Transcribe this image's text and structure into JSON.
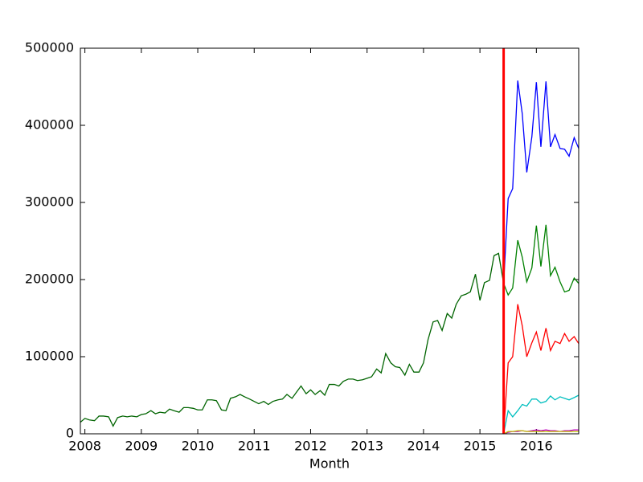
{
  "chart_data": {
    "type": "line",
    "xlabel": "Month",
    "x": [
      2007.92,
      2008.0,
      2008.08,
      2008.17,
      2008.25,
      2008.33,
      2008.42,
      2008.5,
      2008.58,
      2008.67,
      2008.75,
      2008.83,
      2008.92,
      2009.0,
      2009.08,
      2009.17,
      2009.25,
      2009.33,
      2009.42,
      2009.5,
      2009.58,
      2009.67,
      2009.75,
      2009.83,
      2009.92,
      2010.0,
      2010.08,
      2010.17,
      2010.25,
      2010.33,
      2010.42,
      2010.5,
      2010.58,
      2010.67,
      2010.75,
      2010.83,
      2010.92,
      2011.0,
      2011.08,
      2011.17,
      2011.25,
      2011.33,
      2011.42,
      2011.5,
      2011.58,
      2011.67,
      2011.75,
      2011.83,
      2011.92,
      2012.0,
      2012.08,
      2012.17,
      2012.25,
      2012.33,
      2012.42,
      2012.5,
      2012.58,
      2012.67,
      2012.75,
      2012.83,
      2012.92,
      2013.0,
      2013.08,
      2013.17,
      2013.25,
      2013.33,
      2013.42,
      2013.5,
      2013.58,
      2013.67,
      2013.75,
      2013.83,
      2013.92,
      2014.0,
      2014.08,
      2014.17,
      2014.25,
      2014.33,
      2014.42,
      2014.5,
      2014.58,
      2014.67,
      2014.75,
      2014.83,
      2014.92,
      2015.0,
      2015.08,
      2015.17,
      2015.25,
      2015.33,
      2015.42,
      2015.5,
      2015.58,
      2015.67,
      2015.75,
      2015.83,
      2015.92,
      2016.0,
      2016.08,
      2016.17,
      2016.25,
      2016.33,
      2016.42,
      2016.5,
      2016.58,
      2016.67,
      2016.75
    ],
    "series": [
      {
        "color": "#006400",
        "values": [
          15000,
          20000,
          18000,
          17000,
          23000,
          23000,
          22000,
          10000,
          21000,
          23000,
          22000,
          23000,
          22000,
          25000,
          26000,
          30000,
          26000,
          28000,
          27000,
          32000,
          30000,
          28000,
          34000,
          34000,
          33000,
          31000,
          31000,
          44000,
          44000,
          43000,
          31000,
          30000,
          46000,
          48000,
          51000,
          48000,
          45000,
          42000,
          39000,
          42000,
          38000,
          42000,
          44000,
          45000,
          51000,
          46000,
          54000,
          62000,
          52000,
          57000,
          51000,
          56000,
          50000,
          64000,
          64000,
          62000,
          68000,
          71000,
          71000,
          69000,
          70000,
          72000,
          74000,
          84000,
          79000,
          104000,
          92000,
          87000,
          86000,
          76000,
          90000,
          80000,
          80000,
          92000,
          122000,
          145000,
          147000,
          134000,
          156000,
          150000,
          168000,
          179000,
          181000,
          184000,
          207000,
          173000,
          196000,
          199000,
          231000,
          234000,
          195000,
          null,
          null,
          null,
          null,
          null,
          null,
          null,
          null,
          null,
          null,
          null,
          null,
          null,
          null,
          null,
          null
        ]
      },
      {
        "color": "#0000ff",
        "values": [
          null,
          null,
          null,
          null,
          null,
          null,
          null,
          null,
          null,
          null,
          null,
          null,
          null,
          null,
          null,
          null,
          null,
          null,
          null,
          null,
          null,
          null,
          null,
          null,
          null,
          null,
          null,
          null,
          null,
          null,
          null,
          null,
          null,
          null,
          null,
          null,
          null,
          null,
          null,
          null,
          null,
          null,
          null,
          null,
          null,
          null,
          null,
          null,
          null,
          null,
          null,
          null,
          null,
          null,
          null,
          null,
          null,
          null,
          null,
          null,
          null,
          null,
          null,
          null,
          null,
          null,
          null,
          null,
          null,
          null,
          null,
          null,
          null,
          null,
          null,
          null,
          null,
          null,
          null,
          null,
          null,
          null,
          null,
          null,
          null,
          null,
          null,
          null,
          null,
          null,
          195000,
          305000,
          318000,
          458000,
          415000,
          339000,
          385000,
          456000,
          372000,
          457000,
          372000,
          388000,
          370000,
          369000,
          360000,
          384000,
          370000
        ]
      },
      {
        "color": "#008000",
        "values": [
          null,
          null,
          null,
          null,
          null,
          null,
          null,
          null,
          null,
          null,
          null,
          null,
          null,
          null,
          null,
          null,
          null,
          null,
          null,
          null,
          null,
          null,
          null,
          null,
          null,
          null,
          null,
          null,
          null,
          null,
          null,
          null,
          null,
          null,
          null,
          null,
          null,
          null,
          null,
          null,
          null,
          null,
          null,
          null,
          null,
          null,
          null,
          null,
          null,
          null,
          null,
          null,
          null,
          null,
          null,
          null,
          null,
          null,
          null,
          null,
          null,
          null,
          null,
          null,
          null,
          null,
          null,
          null,
          null,
          null,
          null,
          null,
          null,
          null,
          null,
          null,
          null,
          null,
          null,
          null,
          null,
          null,
          null,
          null,
          null,
          null,
          null,
          null,
          null,
          null,
          195000,
          180000,
          189000,
          251000,
          229000,
          197000,
          215000,
          270000,
          217000,
          271000,
          205000,
          216000,
          197000,
          184000,
          186000,
          202000,
          195000
        ]
      },
      {
        "color": "#ff0000",
        "values": [
          null,
          null,
          null,
          null,
          null,
          null,
          null,
          null,
          null,
          null,
          null,
          null,
          null,
          null,
          null,
          null,
          null,
          null,
          null,
          null,
          null,
          null,
          null,
          null,
          null,
          null,
          null,
          null,
          null,
          null,
          null,
          null,
          null,
          null,
          null,
          null,
          null,
          null,
          null,
          null,
          null,
          null,
          null,
          null,
          null,
          null,
          null,
          null,
          null,
          null,
          null,
          null,
          null,
          null,
          null,
          null,
          null,
          null,
          null,
          null,
          null,
          null,
          null,
          null,
          null,
          null,
          null,
          null,
          null,
          null,
          null,
          null,
          null,
          null,
          null,
          null,
          null,
          null,
          null,
          null,
          null,
          null,
          null,
          null,
          null,
          null,
          null,
          null,
          null,
          null,
          0,
          92000,
          100000,
          168000,
          140000,
          100000,
          118000,
          132000,
          108000,
          137000,
          108000,
          120000,
          117000,
          130000,
          120000,
          126000,
          117000
        ]
      },
      {
        "color": "#00bfbf",
        "values": [
          null,
          null,
          null,
          null,
          null,
          null,
          null,
          null,
          null,
          null,
          null,
          null,
          null,
          null,
          null,
          null,
          null,
          null,
          null,
          null,
          null,
          null,
          null,
          null,
          null,
          null,
          null,
          null,
          null,
          null,
          null,
          null,
          null,
          null,
          null,
          null,
          null,
          null,
          null,
          null,
          null,
          null,
          null,
          null,
          null,
          null,
          null,
          null,
          null,
          null,
          null,
          null,
          null,
          null,
          null,
          null,
          null,
          null,
          null,
          null,
          null,
          null,
          null,
          null,
          null,
          null,
          null,
          null,
          null,
          null,
          null,
          null,
          null,
          null,
          null,
          null,
          null,
          null,
          null,
          null,
          null,
          null,
          null,
          null,
          null,
          null,
          null,
          null,
          null,
          null,
          0,
          30000,
          22000,
          30000,
          38000,
          36000,
          45000,
          45000,
          40000,
          42000,
          49000,
          44000,
          48000,
          46000,
          44000,
          47000,
          50000
        ]
      },
      {
        "color": "#bf00bf",
        "values": [
          null,
          null,
          null,
          null,
          null,
          null,
          null,
          null,
          null,
          null,
          null,
          null,
          null,
          null,
          null,
          null,
          null,
          null,
          null,
          null,
          null,
          null,
          null,
          null,
          null,
          null,
          null,
          null,
          null,
          null,
          null,
          null,
          null,
          null,
          null,
          null,
          null,
          null,
          null,
          null,
          null,
          null,
          null,
          null,
          null,
          null,
          null,
          null,
          null,
          null,
          null,
          null,
          null,
          null,
          null,
          null,
          null,
          null,
          null,
          null,
          null,
          null,
          null,
          null,
          null,
          null,
          null,
          null,
          null,
          null,
          null,
          null,
          null,
          null,
          null,
          null,
          null,
          null,
          null,
          null,
          null,
          null,
          null,
          null,
          null,
          null,
          null,
          null,
          null,
          null,
          0,
          2000,
          3000,
          3000,
          4000,
          3000,
          4000,
          5000,
          4000,
          5000,
          4000,
          4000,
          3000,
          4000,
          4000,
          5000,
          5000
        ]
      },
      {
        "color": "#bfbf00",
        "values": [
          null,
          null,
          null,
          null,
          null,
          null,
          null,
          null,
          null,
          null,
          null,
          null,
          null,
          null,
          null,
          null,
          null,
          null,
          null,
          null,
          null,
          null,
          null,
          null,
          null,
          null,
          null,
          null,
          null,
          null,
          null,
          null,
          null,
          null,
          null,
          null,
          null,
          null,
          null,
          null,
          null,
          null,
          null,
          null,
          null,
          null,
          null,
          null,
          null,
          null,
          null,
          null,
          null,
          null,
          null,
          null,
          null,
          null,
          null,
          null,
          null,
          null,
          null,
          null,
          null,
          null,
          null,
          null,
          null,
          null,
          null,
          null,
          null,
          null,
          null,
          null,
          null,
          null,
          null,
          null,
          null,
          null,
          null,
          null,
          null,
          null,
          null,
          null,
          null,
          null,
          0,
          3000,
          3000,
          4000,
          4000,
          3000,
          3000,
          3000,
          3000,
          3000,
          3000,
          3000,
          3000,
          3000,
          3000,
          3000,
          3000
        ]
      }
    ],
    "vline": {
      "x": 2015.42,
      "color": "#ff0000"
    },
    "xlim": [
      2007.92,
      2016.75
    ],
    "xticks": [
      2008,
      2009,
      2010,
      2011,
      2012,
      2013,
      2014,
      2015,
      2016
    ],
    "ylim": [
      0,
      500000
    ],
    "yticks": [
      0,
      100000,
      200000,
      300000,
      400000,
      500000
    ]
  }
}
